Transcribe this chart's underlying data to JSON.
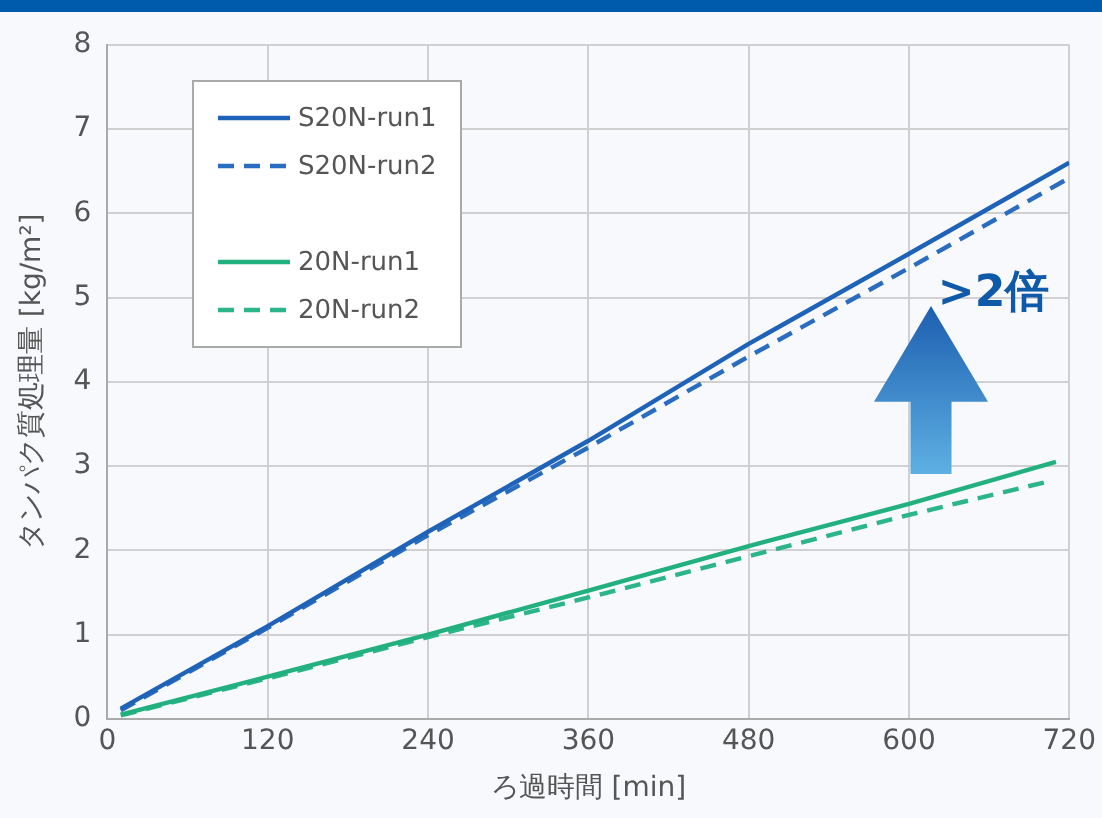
{
  "chart_data": {
    "type": "line",
    "xlabel": "ろ過時間 [min]",
    "ylabel": "タンパク質処理量 [kg/m²]",
    "xlim": [
      0,
      720
    ],
    "xticks": [
      0,
      120,
      240,
      360,
      480,
      600,
      720
    ],
    "ylim": [
      0,
      8
    ],
    "yticks": [
      0,
      1,
      2,
      3,
      4,
      5,
      6,
      7,
      8
    ],
    "grid": true,
    "legend": "top left",
    "marker": "none",
    "annotations": [
      ">2倍"
    ],
    "series": [
      {
        "name": "S20N-run1",
        "color": "#1f63b8",
        "line_style": "solid",
        "x": [
          10,
          120,
          240,
          360,
          480,
          600,
          720
        ],
        "values": [
          0.12,
          1.1,
          2.22,
          3.3,
          4.45,
          5.52,
          6.6
        ]
      },
      {
        "name": "S20N-run2",
        "color": "#2a6cc0",
        "line_style": "dashed",
        "x": [
          10,
          120,
          240,
          360,
          480,
          600,
          720
        ],
        "values": [
          0.1,
          1.08,
          2.18,
          3.22,
          4.3,
          5.35,
          6.42
        ]
      },
      {
        "name": "20N-run1",
        "color": "#22b07f",
        "line_style": "solid",
        "x": [
          10,
          120,
          240,
          360,
          480,
          600,
          710
        ],
        "values": [
          0.05,
          0.5,
          1.0,
          1.52,
          2.05,
          2.55,
          3.05
        ]
      },
      {
        "name": "20N-run2",
        "color": "#2bb589",
        "line_style": "dashed",
        "x": [
          10,
          120,
          240,
          360,
          480,
          600,
          705
        ],
        "values": [
          0.04,
          0.48,
          0.97,
          1.44,
          1.93,
          2.42,
          2.82
        ]
      }
    ]
  }
}
